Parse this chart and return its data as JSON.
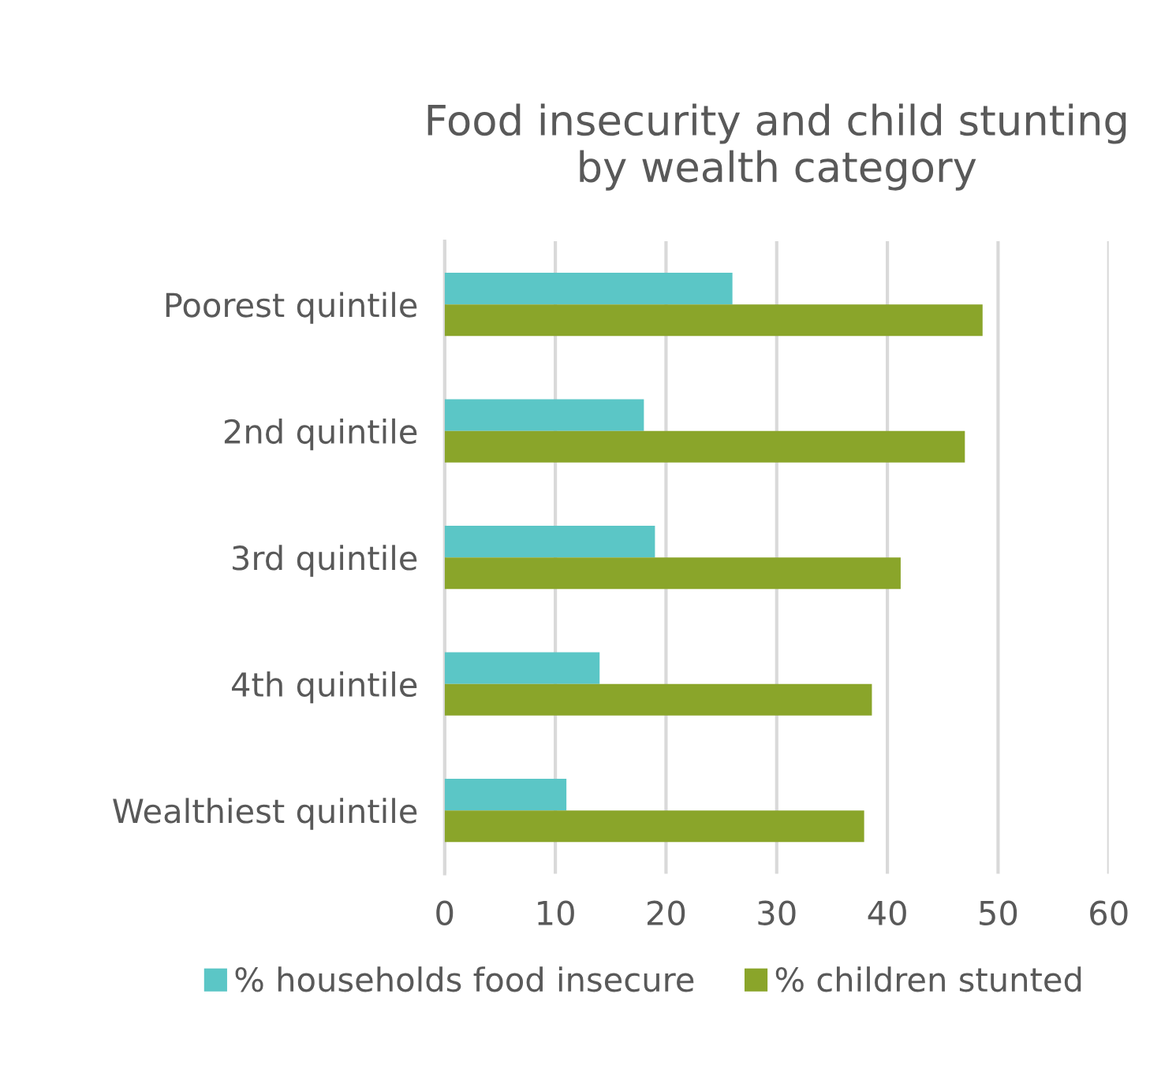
{
  "chart_data": {
    "type": "bar",
    "orientation": "horizontal",
    "title": "Food insecurity and child stunting by wealth category",
    "categories": [
      "Poorest quintile",
      "2nd quintile",
      "3rd quintile",
      "4th quintile",
      "Wealthiest quintile"
    ],
    "series": [
      {
        "name": "% households food insecure",
        "color": "#5bc6c6",
        "values": [
          26,
          18,
          19,
          14,
          11
        ]
      },
      {
        "name": "% children stunted",
        "color": "#8aa52a",
        "values": [
          48.6,
          47.0,
          41.2,
          38.6,
          37.9
        ]
      }
    ],
    "xlim": [
      0,
      60
    ],
    "xticks": [
      0,
      10,
      20,
      30,
      40,
      50,
      60
    ],
    "grid": "x",
    "legend": "bottom"
  }
}
